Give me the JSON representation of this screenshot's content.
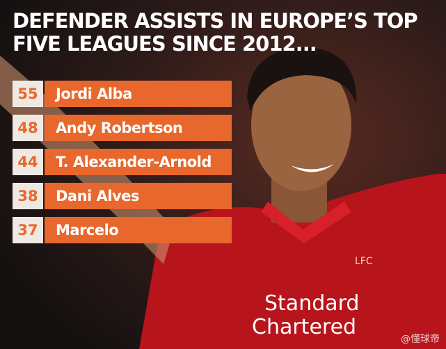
{
  "header": {
    "title_lines": [
      "DEFENDER ASSISTS IN EUROPE’S TOP",
      "FIVE LEAGUES SINCE 2012..."
    ]
  },
  "ranking": {
    "rows": [
      {
        "value": 55,
        "name": "Jordi Alba"
      },
      {
        "value": 48,
        "name": "Andy Robertson"
      },
      {
        "value": 44,
        "name": "T. Alexander-Arnold"
      },
      {
        "value": 38,
        "name": "Dani Alves"
      },
      {
        "value": 37,
        "name": "Marcelo"
      }
    ]
  },
  "photo": {
    "crest": "LFC",
    "sponsor_lines": [
      "Standard",
      "Chartered"
    ]
  },
  "watermark": "@懂球帝"
}
